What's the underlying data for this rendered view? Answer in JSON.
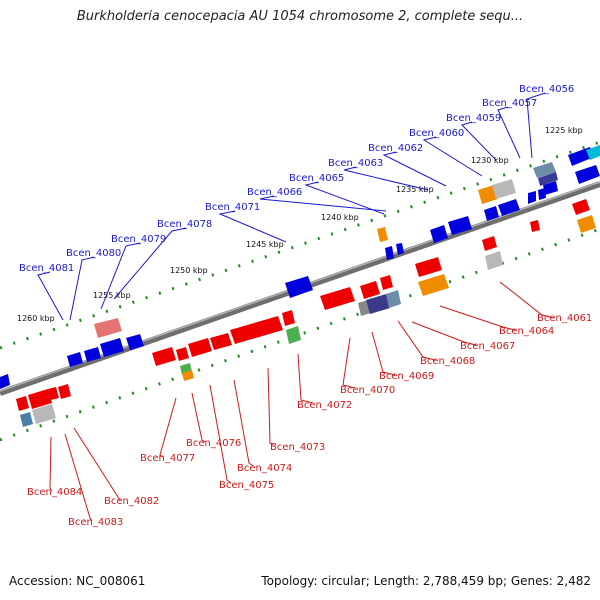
{
  "title": "Burkholderia cenocepacia AU 1054 chromosome 2, complete sequ...",
  "footer": {
    "accession": "Accession: NC_008061",
    "topology": "Topology: circular; Length: 2,788,459 bp; Genes: 2,482"
  },
  "colors": {
    "backbone": "#808080",
    "forward_label": "#1a1acc",
    "reverse_label": "#cc1a1a",
    "tick": "#228b22"
  },
  "kbp_ticks": [
    "1225 kbp",
    "1230 kbp",
    "1235 kbp",
    "1240 kbp",
    "1245 kbp",
    "1250 kbp",
    "1255 kbp",
    "1260 kbp"
  ],
  "forward_genes": [
    "Bcen_4056",
    "Bcen_4057",
    "Bcen_4059",
    "Bcen_4060",
    "Bcen_4062",
    "Bcen_4063",
    "Bcen_4065",
    "Bcen_4066",
    "Bcen_4071",
    "Bcen_4078",
    "Bcen_4079",
    "Bcen_4080",
    "Bcen_4081"
  ],
  "reverse_genes": [
    "Bcen_4061",
    "Bcen_4064",
    "Bcen_4067",
    "Bcen_4068",
    "Bcen_4069",
    "Bcen_4070",
    "Bcen_4072",
    "Bcen_4073",
    "Bcen_4074",
    "Bcen_4075",
    "Bcen_4076",
    "Bcen_4077",
    "Bcen_4082",
    "Bcen_4083",
    "Bcen_4084"
  ]
}
